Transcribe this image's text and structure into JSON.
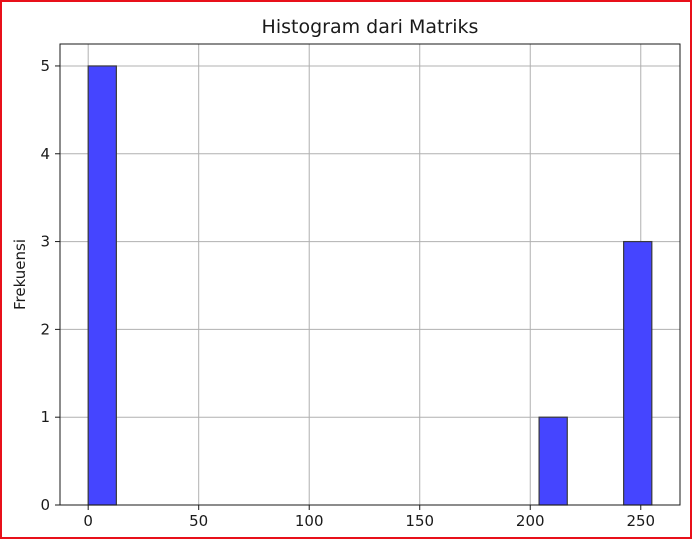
{
  "chart_data": {
    "type": "bar",
    "title": "Histogram dari Matriks",
    "xlabel": "",
    "ylabel": "Frekuensi",
    "xlim": [
      -12.75,
      267.75
    ],
    "ylim": [
      0,
      5.25
    ],
    "xticks": [
      0,
      50,
      100,
      150,
      200,
      250
    ],
    "yticks": [
      0,
      1,
      2,
      3,
      4,
      5
    ],
    "grid": true,
    "bin_width": 12.75,
    "bins": [
      {
        "start": 0,
        "end": 12.75,
        "count": 5
      },
      {
        "start": 204,
        "end": 216.75,
        "count": 1
      },
      {
        "start": 242.25,
        "end": 255,
        "count": 3
      }
    ],
    "bar_color": "#4545ff",
    "edge_color": "#3a3a3a",
    "frame_color": "#e8101a"
  }
}
